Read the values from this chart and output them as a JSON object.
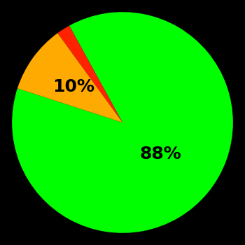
{
  "slices": [
    88,
    2,
    10
  ],
  "colors": [
    "#00ff00",
    "#ff2200",
    "#ffaa00"
  ],
  "labels": [
    "88%",
    "",
    "10%"
  ],
  "background_color": "#000000",
  "label_fontsize": 18,
  "label_color": "#000000",
  "startangle": 162,
  "figsize": [
    3.5,
    3.5
  ],
  "dpi": 100
}
